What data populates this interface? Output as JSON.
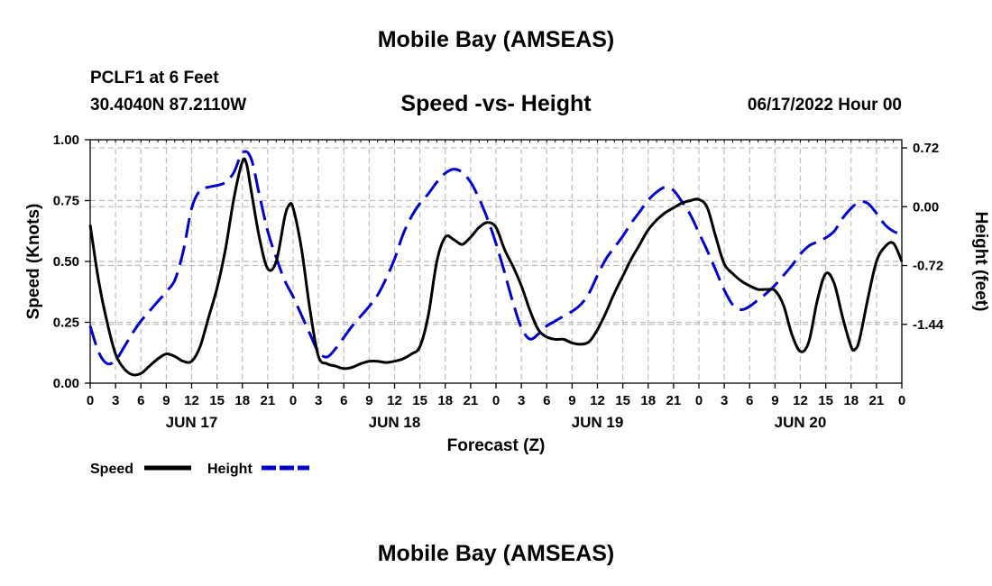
{
  "chart_data": {
    "type": "line",
    "title": "Mobile Bay (AMSEAS)",
    "station": "PCLF1 at 6 Feet",
    "coords": "30.4040N  87.2110W",
    "subtitle": "Speed -vs- Height",
    "run_time": "06/17/2022 Hour 00",
    "xlabel": "Forecast (Z)",
    "ylabel": "Speed (Knots)",
    "y2label": "Height (feet)",
    "x_tick_labels": [
      "0",
      "3",
      "6",
      "9",
      "12",
      "15",
      "18",
      "21",
      "0",
      "3",
      "6",
      "9",
      "12",
      "15",
      "18",
      "21",
      "0",
      "3",
      "6",
      "9",
      "12",
      "15",
      "18",
      "21",
      "0",
      "3",
      "6",
      "9",
      "12",
      "15",
      "18",
      "21",
      "0"
    ],
    "day_labels": [
      {
        "label": "JUN 17",
        "hour": 12
      },
      {
        "label": "JUN 18",
        "hour": 36
      },
      {
        "label": "JUN 19",
        "hour": 60
      },
      {
        "label": "JUN 20",
        "hour": 84
      }
    ],
    "xlim": [
      0,
      96
    ],
    "ylim": [
      0,
      1.0
    ],
    "y_ticks": [
      "0.00",
      "0.25",
      "0.50",
      "0.75",
      "1.00"
    ],
    "y2lim": [
      -2.16,
      0.82
    ],
    "y2_ticks": [
      "0.72",
      "0.00",
      "-0.72",
      "-1.44"
    ],
    "grid": true,
    "legend_position": "bottom-left",
    "series": [
      {
        "name": "Speed",
        "color": "#000000",
        "dash": "solid",
        "axis": "left",
        "points": [
          [
            0,
            0.65
          ],
          [
            1,
            0.42
          ],
          [
            2,
            0.25
          ],
          [
            3,
            0.12
          ],
          [
            4,
            0.06
          ],
          [
            5,
            0.035
          ],
          [
            6,
            0.04
          ],
          [
            7,
            0.07
          ],
          [
            8,
            0.1
          ],
          [
            9,
            0.12
          ],
          [
            10,
            0.11
          ],
          [
            11,
            0.09
          ],
          [
            12,
            0.09
          ],
          [
            13,
            0.15
          ],
          [
            14,
            0.27
          ],
          [
            15,
            0.39
          ],
          [
            16,
            0.55
          ],
          [
            17,
            0.76
          ],
          [
            18,
            0.91
          ],
          [
            18.5,
            0.9
          ],
          [
            19,
            0.8
          ],
          [
            20,
            0.6
          ],
          [
            21,
            0.47
          ],
          [
            22,
            0.5
          ],
          [
            23,
            0.68
          ],
          [
            23.5,
            0.73
          ],
          [
            24,
            0.72
          ],
          [
            25,
            0.55
          ],
          [
            26,
            0.3
          ],
          [
            27,
            0.11
          ],
          [
            28,
            0.08
          ],
          [
            29,
            0.07
          ],
          [
            30,
            0.06
          ],
          [
            31,
            0.065
          ],
          [
            32,
            0.08
          ],
          [
            33,
            0.09
          ],
          [
            34,
            0.09
          ],
          [
            35,
            0.085
          ],
          [
            36,
            0.09
          ],
          [
            37,
            0.1
          ],
          [
            38,
            0.12
          ],
          [
            39,
            0.15
          ],
          [
            40,
            0.28
          ],
          [
            41,
            0.5
          ],
          [
            42,
            0.6
          ],
          [
            43,
            0.59
          ],
          [
            44,
            0.57
          ],
          [
            45,
            0.6
          ],
          [
            46,
            0.64
          ],
          [
            47,
            0.66
          ],
          [
            48,
            0.64
          ],
          [
            49,
            0.55
          ],
          [
            50,
            0.48
          ],
          [
            51,
            0.4
          ],
          [
            52,
            0.3
          ],
          [
            53,
            0.22
          ],
          [
            54,
            0.19
          ],
          [
            55,
            0.18
          ],
          [
            56,
            0.18
          ],
          [
            57,
            0.165
          ],
          [
            58,
            0.16
          ],
          [
            59,
            0.17
          ],
          [
            60,
            0.22
          ],
          [
            61,
            0.29
          ],
          [
            62,
            0.37
          ],
          [
            63,
            0.44
          ],
          [
            64,
            0.51
          ],
          [
            65,
            0.57
          ],
          [
            66,
            0.63
          ],
          [
            67,
            0.67
          ],
          [
            68,
            0.7
          ],
          [
            69,
            0.72
          ],
          [
            70,
            0.74
          ],
          [
            71,
            0.75
          ],
          [
            72,
            0.755
          ],
          [
            73,
            0.72
          ],
          [
            74,
            0.6
          ],
          [
            75,
            0.49
          ],
          [
            76,
            0.45
          ],
          [
            77,
            0.42
          ],
          [
            78,
            0.4
          ],
          [
            79,
            0.385
          ],
          [
            80,
            0.385
          ],
          [
            81,
            0.38
          ],
          [
            82,
            0.32
          ],
          [
            83,
            0.2
          ],
          [
            84,
            0.13
          ],
          [
            85,
            0.17
          ],
          [
            86,
            0.34
          ],
          [
            87,
            0.45
          ],
          [
            88,
            0.41
          ],
          [
            89,
            0.27
          ],
          [
            90,
            0.15
          ],
          [
            90.5,
            0.14
          ],
          [
            91,
            0.18
          ],
          [
            92,
            0.35
          ],
          [
            93,
            0.5
          ],
          [
            94,
            0.56
          ],
          [
            95,
            0.575
          ],
          [
            96,
            0.5
          ]
        ]
      },
      {
        "name": "Height",
        "color": "#0000cc",
        "dash": "dashed",
        "axis": "right",
        "points": [
          [
            0,
            -1.46
          ],
          [
            1,
            -1.78
          ],
          [
            2,
            -1.92
          ],
          [
            3,
            -1.88
          ],
          [
            4,
            -1.72
          ],
          [
            5,
            -1.55
          ],
          [
            6,
            -1.4
          ],
          [
            7,
            -1.28
          ],
          [
            8,
            -1.16
          ],
          [
            9,
            -1.04
          ],
          [
            10,
            -0.9
          ],
          [
            11,
            -0.55
          ],
          [
            12,
            -0.02
          ],
          [
            13,
            0.2
          ],
          [
            14,
            0.24
          ],
          [
            15,
            0.26
          ],
          [
            16,
            0.3
          ],
          [
            17,
            0.42
          ],
          [
            18,
            0.66
          ],
          [
            19,
            0.6
          ],
          [
            20,
            0.15
          ],
          [
            21,
            -0.3
          ],
          [
            22,
            -0.62
          ],
          [
            23,
            -0.9
          ],
          [
            24,
            -1.1
          ],
          [
            25,
            -1.33
          ],
          [
            26,
            -1.56
          ],
          [
            27,
            -1.78
          ],
          [
            28,
            -1.84
          ],
          [
            29,
            -1.74
          ],
          [
            30,
            -1.6
          ],
          [
            31,
            -1.46
          ],
          [
            32,
            -1.34
          ],
          [
            33,
            -1.22
          ],
          [
            34,
            -1.08
          ],
          [
            35,
            -0.88
          ],
          [
            36,
            -0.64
          ],
          [
            37,
            -0.34
          ],
          [
            38,
            -0.12
          ],
          [
            39,
            0.04
          ],
          [
            40,
            0.16
          ],
          [
            41,
            0.3
          ],
          [
            42,
            0.41
          ],
          [
            43,
            0.46
          ],
          [
            44,
            0.42
          ],
          [
            45,
            0.3
          ],
          [
            46,
            0.1
          ],
          [
            47,
            -0.15
          ],
          [
            48,
            -0.45
          ],
          [
            49,
            -0.8
          ],
          [
            50,
            -1.17
          ],
          [
            51,
            -1.48
          ],
          [
            52,
            -1.62
          ],
          [
            53,
            -1.56
          ],
          [
            54,
            -1.46
          ],
          [
            55,
            -1.4
          ],
          [
            56,
            -1.34
          ],
          [
            57,
            -1.28
          ],
          [
            58,
            -1.2
          ],
          [
            59,
            -1.06
          ],
          [
            60,
            -0.84
          ],
          [
            61,
            -0.64
          ],
          [
            62,
            -0.5
          ],
          [
            63,
            -0.36
          ],
          [
            64,
            -0.2
          ],
          [
            65,
            -0.06
          ],
          [
            66,
            0.08
          ],
          [
            67,
            0.18
          ],
          [
            68,
            0.24
          ],
          [
            69,
            0.2
          ],
          [
            70,
            0.06
          ],
          [
            71,
            -0.1
          ],
          [
            72,
            -0.32
          ],
          [
            73,
            -0.54
          ],
          [
            74,
            -0.78
          ],
          [
            75,
            -1.02
          ],
          [
            76,
            -1.2
          ],
          [
            77,
            -1.26
          ],
          [
            78,
            -1.22
          ],
          [
            79,
            -1.14
          ],
          [
            80,
            -1.06
          ],
          [
            81,
            -0.96
          ],
          [
            82,
            -0.84
          ],
          [
            83,
            -0.72
          ],
          [
            84,
            -0.58
          ],
          [
            85,
            -0.48
          ],
          [
            86,
            -0.43
          ],
          [
            87,
            -0.38
          ],
          [
            88,
            -0.3
          ],
          [
            89,
            -0.14
          ],
          [
            90,
            -0.02
          ],
          [
            91,
            0.06
          ],
          [
            92,
            0.04
          ],
          [
            93,
            -0.08
          ],
          [
            94,
            -0.22
          ],
          [
            95,
            -0.3
          ],
          [
            96,
            -0.34
          ]
        ]
      }
    ]
  }
}
